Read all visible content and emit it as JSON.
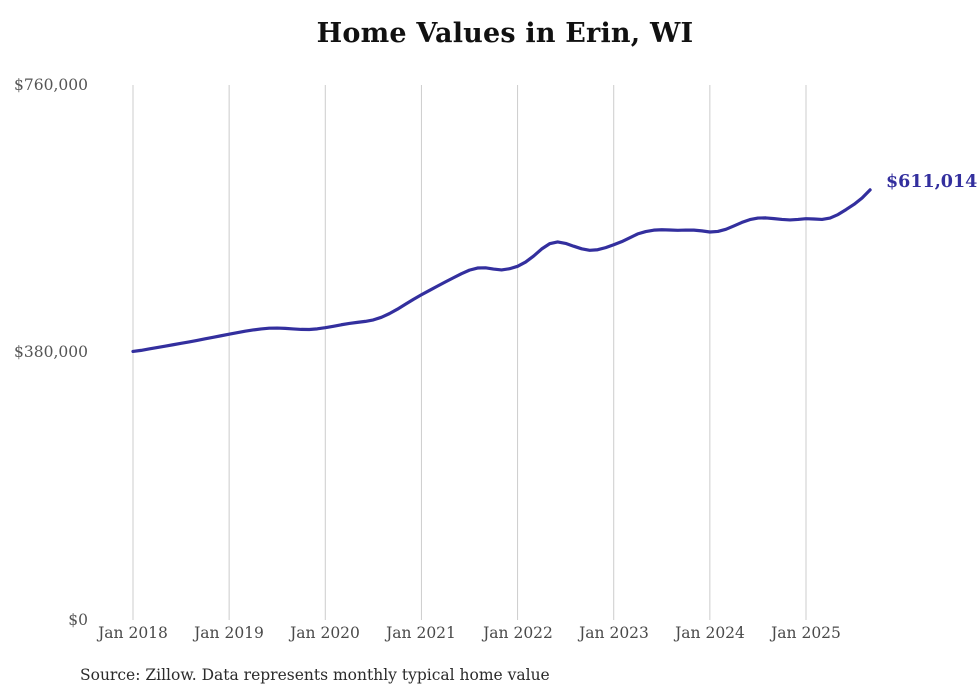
{
  "title": "Home Values in Erin, WI",
  "source_note": "Source: Zillow. Data represents monthly typical home value",
  "end_label": "$611,014",
  "colors": {
    "line": "#332f9e",
    "end_label": "#332f9e",
    "grid": "#cccccc",
    "y_axis_text": "#555555",
    "x_axis_text": "#4a4a4a",
    "title_text": "#111111",
    "source_text": "#2b2b2b",
    "background": "#ffffff"
  },
  "y_axis": {
    "labels": [
      "$760,000",
      "$380,000",
      "$0"
    ],
    "values": [
      760000,
      380000,
      0
    ]
  },
  "x_axis": {
    "labels": [
      "Jan 2018",
      "Jan 2019",
      "Jan 2020",
      "Jan 2021",
      "Jan 2022",
      "Jan 2023",
      "Jan 2024",
      "Jan 2025"
    ]
  },
  "chart_data": {
    "type": "line",
    "title": "Home Values in Erin, WI",
    "xlabel": "",
    "ylabel": "",
    "ylim": [
      0,
      760000
    ],
    "grid": "vertical-only",
    "legend_position": "none",
    "x_unit": "month",
    "x_start": "2018-01",
    "x_end": "2025-09",
    "x_tick_labels": [
      "Jan 2018",
      "Jan 2019",
      "Jan 2020",
      "Jan 2021",
      "Jan 2022",
      "Jan 2023",
      "Jan 2024",
      "Jan 2025"
    ],
    "final_value": 611014,
    "final_value_label": "$611,014",
    "series": [
      {
        "name": "Monthly typical home value",
        "values": [
          381500,
          383000,
          385000,
          387000,
          389000,
          391000,
          393000,
          395000,
          397200,
          399400,
          401600,
          403800,
          406000,
          408200,
          410300,
          412000,
          413500,
          414500,
          414700,
          414300,
          413500,
          412800,
          412700,
          413600,
          415200,
          417200,
          419400,
          421300,
          422800,
          424200,
          426300,
          430000,
          435200,
          441500,
          448500,
          455500,
          462000,
          468200,
          474300,
          480300,
          486200,
          492000,
          497000,
          500000,
          500300,
          498500,
          497300,
          499000,
          502400,
          508500,
          517000,
          527000,
          534500,
          537000,
          535000,
          531000,
          527300,
          525200,
          526000,
          529000,
          533000,
          537500,
          543000,
          548500,
          551800,
          553800,
          554400,
          554000,
          553600,
          553900,
          553800,
          552800,
          551200,
          552000,
          555000,
          559800,
          564800,
          568800,
          571000,
          571200,
          570200,
          569000,
          568300,
          569000,
          570100,
          569600,
          569000,
          571000,
          576000,
          583000,
          590500,
          599500,
          611014
        ]
      }
    ]
  }
}
